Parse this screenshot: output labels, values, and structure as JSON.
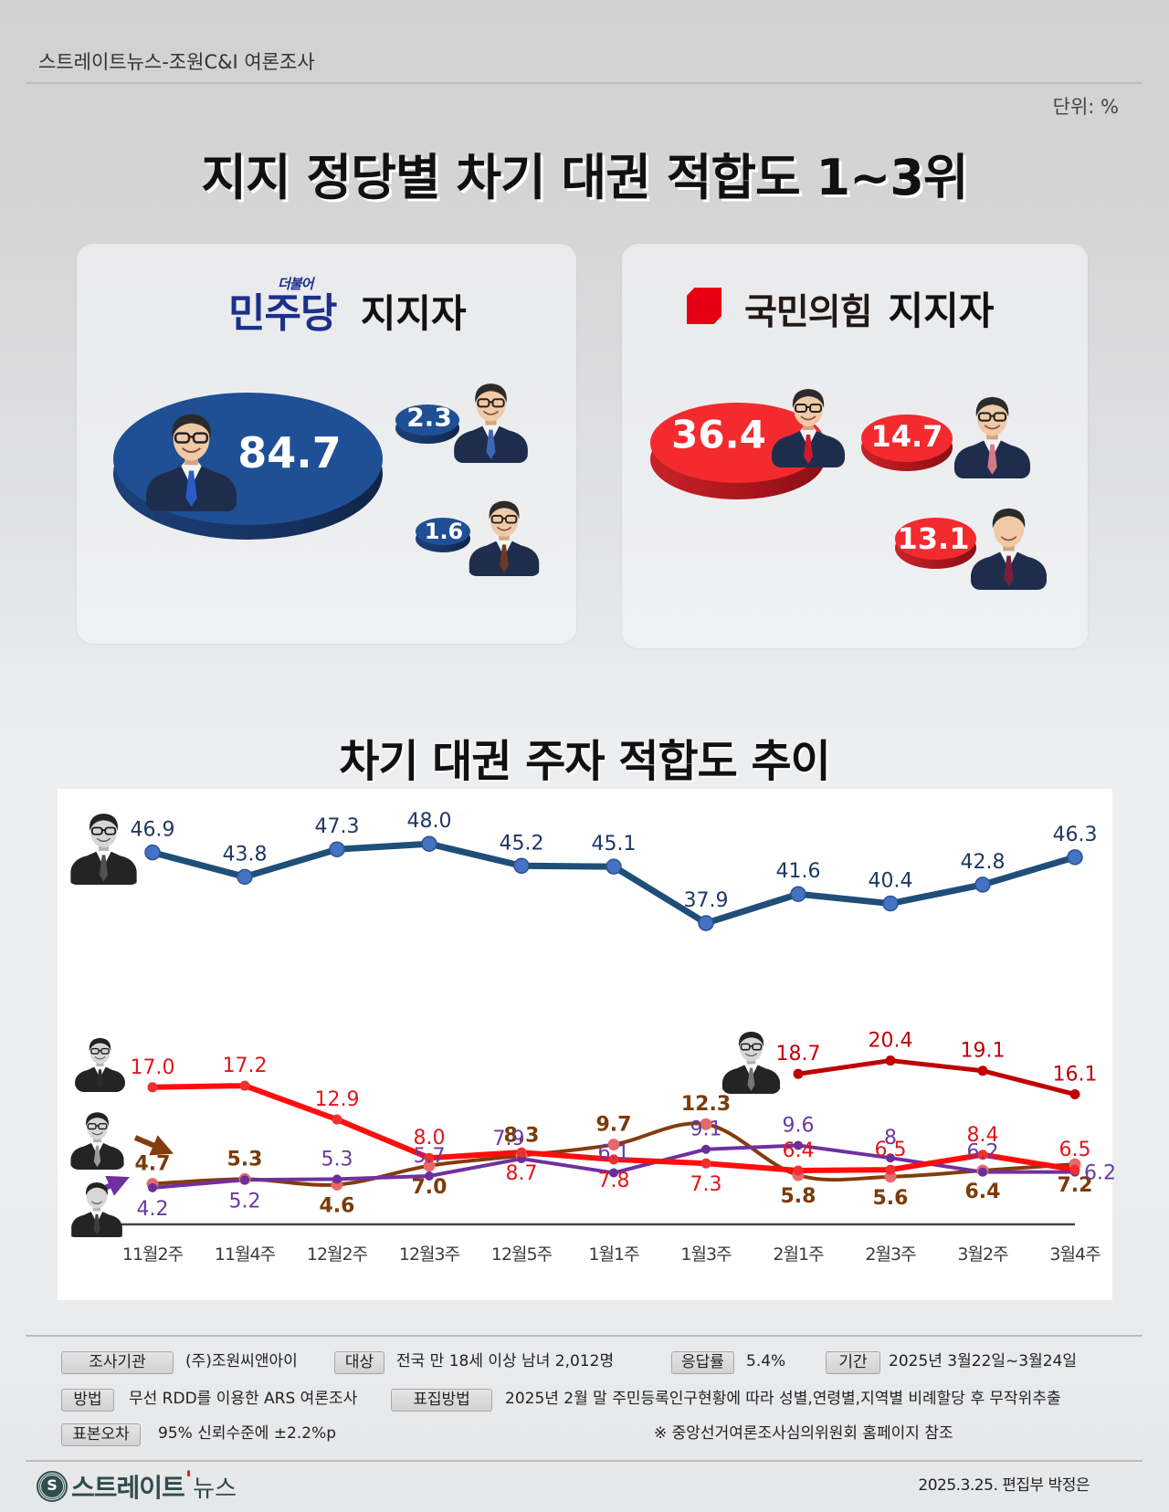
{
  "header": {
    "source": "스트레이트뉴스-조원C&I 여론조사",
    "unit": "단위: %"
  },
  "title": "지지 정당별 차기 대권 적합도 1~3위",
  "panels": {
    "democratic": {
      "prefix": "더불어",
      "party": "민주당",
      "suffix": "지지자",
      "color": "#1f5095",
      "results": [
        {
          "rank": 1,
          "value": "84.7"
        },
        {
          "rank": 2,
          "value": "2.3"
        },
        {
          "rank": 3,
          "value": "1.6"
        }
      ]
    },
    "ppp": {
      "party": "국민의힘",
      "suffix": "지지자",
      "color": "#f32a2e",
      "results": [
        {
          "rank": 1,
          "value": "36.4"
        },
        {
          "rank": 2,
          "value": "14.7"
        },
        {
          "rank": 3,
          "value": "13.1"
        }
      ]
    }
  },
  "trend_title": "차기 대권 주자 적합도 추이",
  "chart_data": {
    "type": "line",
    "title": "차기 대권 주자 적합도 추이",
    "xlabel": "",
    "ylabel": "",
    "unit": "%",
    "grid": false,
    "legend": "candidate photos at the start of each line (no text legend)",
    "categories": [
      "11월2주",
      "11월4주",
      "12월2주",
      "12월3주",
      "12월5주",
      "1월1주",
      "1월3주",
      "2월1주",
      "2월3주",
      "3월2주",
      "3월4주"
    ],
    "series": [
      {
        "id": "brown",
        "name": "brown line (photo 3)",
        "color": "#843c0c",
        "label_color": "#7b3b0b",
        "values": [
          4.7,
          5.3,
          4.6,
          7.0,
          8.3,
          9.7,
          12.3,
          5.8,
          5.6,
          6.4,
          7.2
        ],
        "labels": [
          "4.7",
          "5.3",
          "4.6",
          "7.0",
          "8.3",
          "9.7",
          "12.3",
          "5.8",
          "5.6",
          "6.4",
          "7.2"
        ],
        "label_pos": [
          "above",
          "above",
          "below",
          "below",
          "above",
          "above",
          "above",
          "below",
          "below",
          "below",
          "below"
        ],
        "style": {
          "width": 4,
          "marker_r": 6.5,
          "marker_fill": "#e8696b",
          "smooth": true,
          "bold_labels": true
        }
      },
      {
        "id": "purple",
        "name": "purple line (photo 4)",
        "color": "#7030a0",
        "label_color": "#6a3aa2",
        "values": [
          4.2,
          5.2,
          5.3,
          5.7,
          7.9,
          6.1,
          9.1,
          9.6,
          8,
          6.2,
          6.2
        ],
        "labels": [
          "4.2",
          "5.2",
          "5.3",
          "5.7",
          "7.9",
          "6.1",
          "9.1",
          "9.6",
          "8",
          "6.2",
          "6.2"
        ],
        "label_pos": [
          "below",
          "below",
          "above",
          "above",
          "above-left",
          "above",
          "above",
          "above",
          "above",
          "above",
          "right"
        ],
        "style": {
          "width": 4,
          "marker_r": 5,
          "marker_fill": "#6a2f9a",
          "smooth": false,
          "bold_labels": false
        }
      },
      {
        "id": "red",
        "name": "red line (photo 2)",
        "color": "#ff0d0d",
        "label_color": "#e0161b",
        "values": [
          17.0,
          17.2,
          12.9,
          8.0,
          8.7,
          7.8,
          7.3,
          6.4,
          6.5,
          8.4,
          6.5
        ],
        "labels": [
          "17.0",
          "17.2",
          "12.9",
          "8.0",
          "8.7",
          "7.8",
          "7.3",
          "6.4",
          "6.5",
          "8.4",
          "6.5"
        ],
        "label_pos": [
          "above",
          "above",
          "above",
          "above",
          "below",
          "below",
          "below",
          "above",
          "above",
          "above",
          "above"
        ],
        "style": {
          "width": 6,
          "marker_r": 5.5,
          "marker_fill": "#f03030",
          "smooth": false,
          "bold_labels": false
        }
      },
      {
        "id": "darkred",
        "name": "dark red line (photo 5)",
        "color": "#c00000",
        "label_color": "#c0000a",
        "values": [
          null,
          null,
          null,
          null,
          null,
          null,
          null,
          18.7,
          20.4,
          19.1,
          16.1
        ],
        "labels": [
          "",
          "",
          "",
          "",
          "",
          "",
          "",
          "18.7",
          "20.4",
          "19.1",
          "16.1"
        ],
        "label_pos": [
          "",
          "",
          "",
          "",
          "",
          "",
          "",
          "above",
          "above",
          "above",
          "above"
        ],
        "style": {
          "width": 5,
          "marker_r": 5.5,
          "marker_fill": "#c00000",
          "smooth": false,
          "bold_labels": false
        }
      },
      {
        "id": "blue",
        "name": "blue line (photo 1)",
        "color": "#1f4e79",
        "label_color": "#1f3864",
        "values": [
          46.9,
          43.8,
          47.3,
          48.0,
          45.2,
          45.1,
          37.9,
          41.6,
          40.4,
          42.8,
          46.3
        ],
        "labels": [
          "46.9",
          "43.8",
          "47.3",
          "48.0",
          "45.2",
          "45.1",
          "37.9",
          "41.6",
          "40.4",
          "42.8",
          "46.3"
        ],
        "label_pos": [
          "above",
          "above",
          "above",
          "above",
          "above",
          "above",
          "above",
          "above",
          "above",
          "above",
          "above"
        ],
        "style": {
          "width": 7,
          "marker_r": 8,
          "marker_fill": "#4472c4",
          "marker_stroke": "#2f528f",
          "smooth": false,
          "bold_labels": false,
          "label_gap": 18
        }
      }
    ]
  },
  "survey": {
    "agency": {
      "label": "조사기관",
      "value": "(주)조원씨앤아이"
    },
    "target": {
      "label": "대상",
      "value": "전국 만 18세 이상 남녀 2,012명"
    },
    "response_rate": {
      "label": "응답률",
      "value": "5.4%"
    },
    "period": {
      "label": "기간",
      "value": "2025년 3월22일~3월24일"
    },
    "method": {
      "label": "방법",
      "value": "무선 RDD를 이용한 ARS 여론조사"
    },
    "sampling": {
      "label": "표집방법",
      "value": "2025년 2월 말 주민등록인구현황에 따라 성별,연령별,지역별 비례할당 후 무작위추출"
    },
    "margin": {
      "label": "표본오차",
      "value": "95% 신뢰수준에 ±2.2%p"
    },
    "note": "※ 중앙선거여론조사심의위원회 홈페이지 참조"
  },
  "footer": {
    "logo_icon": "S",
    "logo_main": "스트레이트",
    "logo_mark": "'",
    "logo_sub": "뉴스",
    "credit": "2025.3.25. 편집부 박정은"
  }
}
